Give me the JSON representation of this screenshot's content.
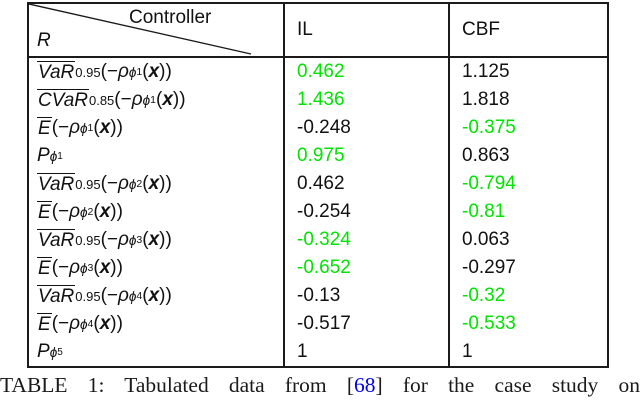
{
  "colors": {
    "highlight_green": "#00e400",
    "cite_blue": "#0000ee",
    "text_black": "#111111"
  },
  "table": {
    "header": {
      "diag_top": "Controller",
      "diag_bottom": "R",
      "columns": [
        "IL",
        "CBF"
      ]
    },
    "rows": [
      {
        "label": [
          {
            "t": "VaR",
            "s": "ol"
          },
          {
            "t": "0.95",
            "s": "sub"
          },
          {
            "t": "(−",
            "s": ""
          },
          {
            "t": "ρ",
            "s": "it"
          },
          {
            "t": "ϕ",
            "s": "supit"
          },
          {
            "t": "1",
            "s": "supsub"
          },
          {
            "t": "(",
            "s": ""
          },
          {
            "t": "x",
            "s": "bi"
          },
          {
            "t": "))",
            "s": ""
          }
        ],
        "il": {
          "text": "0.462",
          "green": true
        },
        "cbf": {
          "text": "1.125",
          "green": false
        }
      },
      {
        "label": [
          {
            "t": "CVaR",
            "s": "ol"
          },
          {
            "t": "0.85",
            "s": "sub"
          },
          {
            "t": "(−",
            "s": ""
          },
          {
            "t": "ρ",
            "s": "it"
          },
          {
            "t": "ϕ",
            "s": "supit"
          },
          {
            "t": "1",
            "s": "supsub"
          },
          {
            "t": "(",
            "s": ""
          },
          {
            "t": "x",
            "s": "bi"
          },
          {
            "t": "))",
            "s": ""
          }
        ],
        "il": {
          "text": "1.436",
          "green": true
        },
        "cbf": {
          "text": "1.818",
          "green": false
        }
      },
      {
        "label": [
          {
            "t": "E",
            "s": "ol"
          },
          {
            "t": "(−",
            "s": ""
          },
          {
            "t": "ρ",
            "s": "it"
          },
          {
            "t": "ϕ",
            "s": "supit"
          },
          {
            "t": "1",
            "s": "supsub"
          },
          {
            "t": "(",
            "s": ""
          },
          {
            "t": "x",
            "s": "bi"
          },
          {
            "t": "))",
            "s": ""
          }
        ],
        "il": {
          "text": "-0.248",
          "green": false
        },
        "cbf": {
          "text": "-0.375",
          "green": true
        }
      },
      {
        "label": [
          {
            "t": "P",
            "s": "it"
          },
          {
            "t": "ϕ",
            "s": "subit"
          },
          {
            "t": "1",
            "s": "subsub"
          }
        ],
        "il": {
          "text": "0.975",
          "green": true
        },
        "cbf": {
          "text": "0.863",
          "green": false
        }
      },
      {
        "label": [
          {
            "t": "VaR",
            "s": "ol"
          },
          {
            "t": "0.95",
            "s": "sub"
          },
          {
            "t": "(−",
            "s": ""
          },
          {
            "t": "ρ",
            "s": "it"
          },
          {
            "t": "ϕ",
            "s": "supit"
          },
          {
            "t": "2",
            "s": "supsub"
          },
          {
            "t": "(",
            "s": ""
          },
          {
            "t": "x",
            "s": "bi"
          },
          {
            "t": "))",
            "s": ""
          }
        ],
        "il": {
          "text": "0.462",
          "green": false
        },
        "cbf": {
          "text": "-0.794",
          "green": true
        }
      },
      {
        "label": [
          {
            "t": "E",
            "s": "ol"
          },
          {
            "t": "(−",
            "s": ""
          },
          {
            "t": "ρ",
            "s": "it"
          },
          {
            "t": "ϕ",
            "s": "supit"
          },
          {
            "t": "2",
            "s": "supsub"
          },
          {
            "t": "(",
            "s": ""
          },
          {
            "t": "x",
            "s": "bi"
          },
          {
            "t": "))",
            "s": ""
          }
        ],
        "il": {
          "text": "-0.254",
          "green": false
        },
        "cbf": {
          "text": "-0.81",
          "green": true
        }
      },
      {
        "label": [
          {
            "t": "VaR",
            "s": "ol"
          },
          {
            "t": "0.95",
            "s": "sub"
          },
          {
            "t": "(−",
            "s": ""
          },
          {
            "t": "ρ",
            "s": "it"
          },
          {
            "t": "ϕ",
            "s": "supit"
          },
          {
            "t": "3",
            "s": "supsub"
          },
          {
            "t": "(",
            "s": ""
          },
          {
            "t": "x",
            "s": "bi"
          },
          {
            "t": "))",
            "s": ""
          }
        ],
        "il": {
          "text": "-0.324",
          "green": true
        },
        "cbf": {
          "text": "0.063",
          "green": false
        }
      },
      {
        "label": [
          {
            "t": "E",
            "s": "ol"
          },
          {
            "t": "(−",
            "s": ""
          },
          {
            "t": "ρ",
            "s": "it"
          },
          {
            "t": "ϕ",
            "s": "supit"
          },
          {
            "t": "3",
            "s": "supsub"
          },
          {
            "t": "(",
            "s": ""
          },
          {
            "t": "x",
            "s": "bi"
          },
          {
            "t": "))",
            "s": ""
          }
        ],
        "il": {
          "text": "-0.652",
          "green": true
        },
        "cbf": {
          "text": "-0.297",
          "green": false
        }
      },
      {
        "label": [
          {
            "t": "VaR",
            "s": "ol"
          },
          {
            "t": "0.95",
            "s": "sub"
          },
          {
            "t": "(−",
            "s": ""
          },
          {
            "t": "ρ",
            "s": "it"
          },
          {
            "t": "ϕ",
            "s": "supit"
          },
          {
            "t": "4",
            "s": "supsub"
          },
          {
            "t": "(",
            "s": ""
          },
          {
            "t": "x",
            "s": "bi"
          },
          {
            "t": "))",
            "s": ""
          }
        ],
        "il": {
          "text": "-0.13",
          "green": false
        },
        "cbf": {
          "text": "-0.32",
          "green": true
        }
      },
      {
        "label": [
          {
            "t": "E",
            "s": "ol"
          },
          {
            "t": "(−",
            "s": ""
          },
          {
            "t": "ρ",
            "s": "it"
          },
          {
            "t": "ϕ",
            "s": "supit"
          },
          {
            "t": "4",
            "s": "supsub"
          },
          {
            "t": "(",
            "s": ""
          },
          {
            "t": "x",
            "s": "bi"
          },
          {
            "t": "))",
            "s": ""
          }
        ],
        "il": {
          "text": "-0.517",
          "green": false
        },
        "cbf": {
          "text": "-0.533",
          "green": true
        }
      },
      {
        "label": [
          {
            "t": "P",
            "s": "it"
          },
          {
            "t": "ϕ",
            "s": "subit"
          },
          {
            "t": "5",
            "s": "subsub"
          }
        ],
        "il": {
          "text": "1",
          "green": false
        },
        "cbf": {
          "text": "1",
          "green": false
        }
      }
    ]
  },
  "caption": {
    "prefix": "TABLE 1: Tabulated data from [",
    "cite": "68",
    "suffix": "] for the case study on"
  }
}
